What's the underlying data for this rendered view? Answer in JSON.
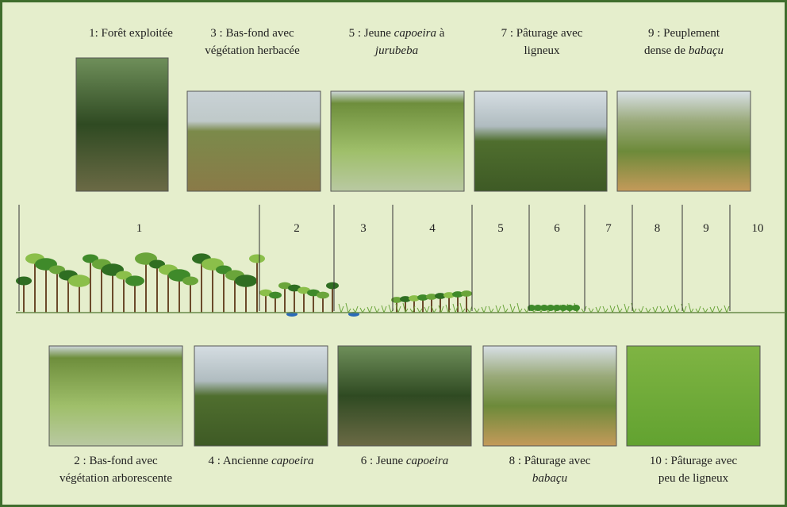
{
  "top": [
    {
      "caption": [
        [
          "1: Forêt exploitée"
        ]
      ]
    },
    {
      "caption": [
        [
          "3 : Bas-fond avec"
        ],
        [
          "végétation herbacée"
        ]
      ]
    },
    {
      "caption": [
        [
          "5 : Jeune ",
          {
            "text": "capoeira",
            "italic": true
          },
          " à"
        ],
        [
          {
            "text": "jurubeba",
            "italic": true
          }
        ]
      ]
    },
    {
      "caption": [
        [
          "7 : Pâturage avec"
        ],
        [
          "ligneux"
        ]
      ]
    },
    {
      "caption": [
        [
          "9 : Peuplement"
        ],
        [
          "dense de ",
          {
            "text": "babaçu",
            "italic": true
          }
        ]
      ]
    }
  ],
  "bottom": [
    {
      "caption": [
        [
          "2 : Bas-fond avec"
        ],
        [
          "végétation arborescente"
        ]
      ]
    },
    {
      "caption": [
        [
          "4 : Ancienne ",
          {
            "text": "capoeira",
            "italic": true
          }
        ]
      ]
    },
    {
      "caption": [
        [
          "6 : Jeune ",
          {
            "text": "capoeira",
            "italic": true
          }
        ]
      ]
    },
    {
      "caption": [
        [
          "8 : Pâturage avec"
        ],
        [
          {
            "text": "babaçu",
            "italic": true
          }
        ]
      ]
    },
    {
      "caption": [
        [
          "10 : Pâturage avec"
        ],
        [
          "peu de ligneux"
        ]
      ]
    }
  ],
  "zones": [
    "1",
    "2",
    "3",
    "4",
    "5",
    "6",
    "7",
    "8",
    "9",
    "10"
  ]
}
